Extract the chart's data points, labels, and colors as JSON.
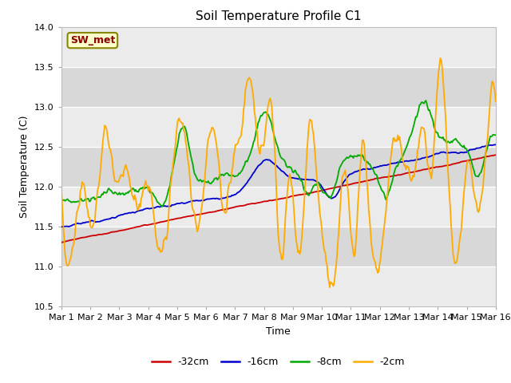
{
  "title": "Soil Temperature Profile C1",
  "xlabel": "Time",
  "ylabel": "Soil Temperature (C)",
  "ylim": [
    10.5,
    14.0
  ],
  "yticks": [
    10.5,
    11.0,
    11.5,
    12.0,
    12.5,
    13.0,
    13.5,
    14.0
  ],
  "date_labels": [
    "Mar 1",
    "Mar 2",
    "Mar 3",
    "Mar 4",
    "Mar 5",
    "Mar 6",
    "Mar 7",
    "Mar 8",
    "Mar 9",
    "Mar 10",
    "Mar 11",
    "Mar 12",
    "Mar 13",
    "Mar 14",
    "Mar 15",
    "Mar 16"
  ],
  "series_colors": {
    "-32cm": "#cc0000",
    "-16cm": "#0000cc",
    "-8cm": "#00aa00",
    "-2cm": "#ffaa00"
  },
  "legend_label": "SW_met",
  "legend_bg": "#ffffcc",
  "legend_border": "#888800",
  "legend_text_color": "#8b0000",
  "plot_bg_light": "#ebebeb",
  "plot_bg_dark": "#d8d8d8",
  "n_points": 480
}
